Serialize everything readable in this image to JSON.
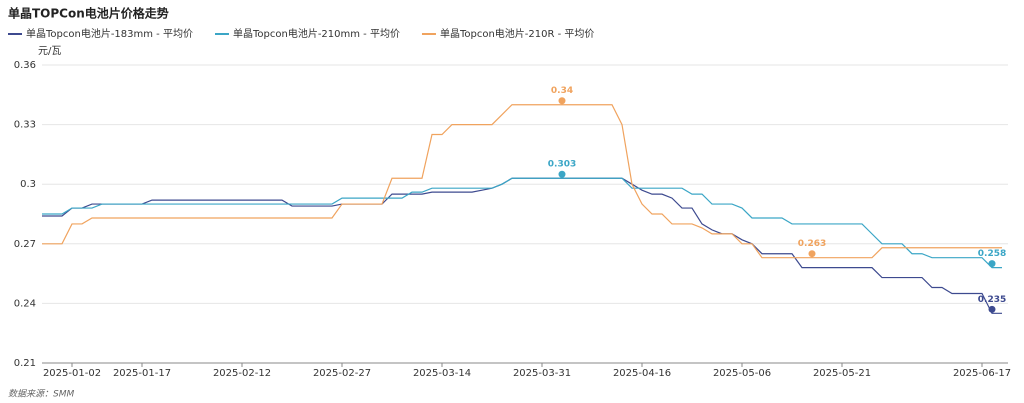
{
  "chart_data": {
    "type": "line",
    "title": "单晶TOPCon电池片价格走势",
    "y_unit": "元/瓦",
    "source": "数据来源：SMM",
    "legend": "top-left",
    "grid": true,
    "ylim": [
      0.21,
      0.36
    ],
    "yticks": [
      0.21,
      0.24,
      0.27,
      0.3,
      0.33,
      0.36
    ],
    "categories": [
      null,
      null,
      null,
      "2025-01-02",
      null,
      null,
      null,
      null,
      null,
      null,
      "2025-01-17",
      null,
      null,
      null,
      null,
      null,
      null,
      null,
      null,
      null,
      "2025-02-12",
      null,
      null,
      null,
      null,
      null,
      null,
      null,
      null,
      null,
      "2025-02-27",
      null,
      null,
      null,
      null,
      null,
      null,
      null,
      null,
      null,
      "2025-03-14",
      null,
      null,
      null,
      null,
      null,
      null,
      null,
      null,
      null,
      "2025-03-31",
      null,
      null,
      null,
      null,
      null,
      null,
      null,
      null,
      null,
      "2025-04-16",
      null,
      null,
      null,
      null,
      null,
      null,
      null,
      null,
      null,
      "2025-05-06",
      null,
      null,
      null,
      null,
      null,
      null,
      null,
      null,
      null,
      "2025-05-21",
      null,
      null,
      null,
      null,
      null,
      null,
      null,
      null,
      null,
      null,
      null,
      null,
      null,
      "2025-06-17",
      null,
      null
    ],
    "series": [
      {
        "name": "单晶Topcon电池片-183mm - 平均价",
        "color": "#3d4a8f",
        "min_label": "0.235",
        "values": [
          0.284,
          0.284,
          0.284,
          0.288,
          0.288,
          0.29,
          0.29,
          0.29,
          0.29,
          0.29,
          0.29,
          0.292,
          0.292,
          0.292,
          0.292,
          0.292,
          0.292,
          0.292,
          0.292,
          0.292,
          0.292,
          0.292,
          0.292,
          0.292,
          0.292,
          0.289,
          0.289,
          0.289,
          0.289,
          0.289,
          0.29,
          0.29,
          0.29,
          0.29,
          0.29,
          0.295,
          0.295,
          0.295,
          0.295,
          0.296,
          0.296,
          0.296,
          0.296,
          0.296,
          0.297,
          0.298,
          0.3,
          0.303,
          0.303,
          0.303,
          0.303,
          0.303,
          0.303,
          0.303,
          0.303,
          0.303,
          0.303,
          0.303,
          0.303,
          0.3,
          0.297,
          0.295,
          0.295,
          0.293,
          0.288,
          0.288,
          0.28,
          0.277,
          0.275,
          0.275,
          0.272,
          0.27,
          0.265,
          0.265,
          0.265,
          0.265,
          0.258,
          0.258,
          0.258,
          0.258,
          0.258,
          0.258,
          0.258,
          0.258,
          0.253,
          0.253,
          0.253,
          0.253,
          0.253,
          0.248,
          0.248,
          0.245,
          0.245,
          0.245,
          0.245,
          0.235,
          0.235
        ]
      },
      {
        "name": "单晶Topcon电池片-210mm - 平均价",
        "color": "#3ba6c6",
        "max_label": "0.303",
        "min_label": "0.258",
        "values": [
          0.285,
          0.285,
          0.285,
          0.288,
          0.288,
          0.288,
          0.29,
          0.29,
          0.29,
          0.29,
          0.29,
          0.29,
          0.29,
          0.29,
          0.29,
          0.29,
          0.29,
          0.29,
          0.29,
          0.29,
          0.29,
          0.29,
          0.29,
          0.29,
          0.29,
          0.29,
          0.29,
          0.29,
          0.29,
          0.29,
          0.293,
          0.293,
          0.293,
          0.293,
          0.293,
          0.293,
          0.293,
          0.296,
          0.296,
          0.298,
          0.298,
          0.298,
          0.298,
          0.298,
          0.298,
          0.298,
          0.3,
          0.303,
          0.303,
          0.303,
          0.303,
          0.303,
          0.303,
          0.303,
          0.303,
          0.303,
          0.303,
          0.303,
          0.303,
          0.298,
          0.298,
          0.298,
          0.298,
          0.298,
          0.298,
          0.295,
          0.295,
          0.29,
          0.29,
          0.29,
          0.288,
          0.283,
          0.283,
          0.283,
          0.283,
          0.28,
          0.28,
          0.28,
          0.28,
          0.28,
          0.28,
          0.28,
          0.28,
          0.275,
          0.27,
          0.27,
          0.27,
          0.265,
          0.265,
          0.263,
          0.263,
          0.263,
          0.263,
          0.263,
          0.263,
          0.258,
          0.258
        ]
      },
      {
        "name": "单晶Topcon电池片-210R - 平均价",
        "color": "#f0a35e",
        "max_label": "0.34",
        "min_label": "0.263",
        "values": [
          0.27,
          0.27,
          0.27,
          0.28,
          0.28,
          0.283,
          0.283,
          0.283,
          0.283,
          0.283,
          0.283,
          0.283,
          0.283,
          0.283,
          0.283,
          0.283,
          0.283,
          0.283,
          0.283,
          0.283,
          0.283,
          0.283,
          0.283,
          0.283,
          0.283,
          0.283,
          0.283,
          0.283,
          0.283,
          0.283,
          0.29,
          0.29,
          0.29,
          0.29,
          0.29,
          0.303,
          0.303,
          0.303,
          0.303,
          0.325,
          0.325,
          0.33,
          0.33,
          0.33,
          0.33,
          0.33,
          0.335,
          0.34,
          0.34,
          0.34,
          0.34,
          0.34,
          0.34,
          0.34,
          0.34,
          0.34,
          0.34,
          0.34,
          0.33,
          0.3,
          0.29,
          0.285,
          0.285,
          0.28,
          0.28,
          0.28,
          0.278,
          0.275,
          0.275,
          0.275,
          0.27,
          0.27,
          0.263,
          0.263,
          0.263,
          0.263,
          0.263,
          0.263,
          0.263,
          0.263,
          0.263,
          0.263,
          0.263,
          0.263,
          0.268,
          0.268,
          0.268,
          0.268,
          0.268,
          0.268,
          0.268,
          0.268,
          0.268,
          0.268,
          0.268,
          0.268,
          0.268
        ]
      }
    ]
  }
}
